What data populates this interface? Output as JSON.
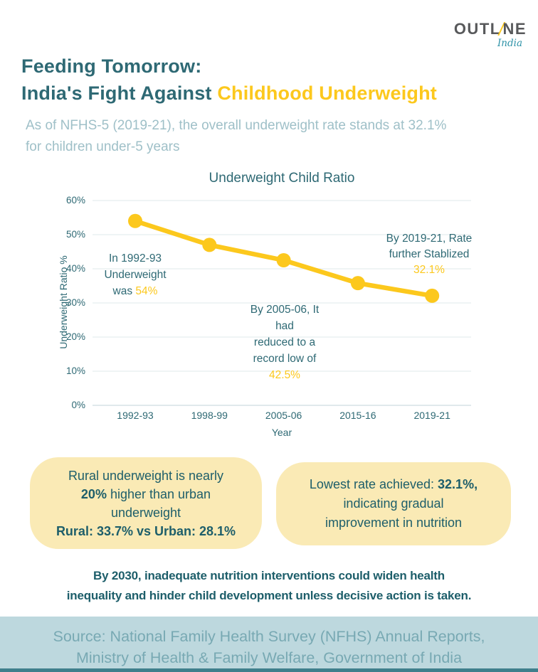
{
  "colors": {
    "teal": "#2e6974",
    "teal_dark": "#1d5e6a",
    "accent_yellow": "#fcc81d",
    "pale_yellow_box": "#faeab5",
    "subtitle_gray_blue": "#9fc0c8",
    "gridline": "#eaf0f2",
    "footer_band": "#bdd8de",
    "footer_text": "#78a9b3",
    "footer_strip": "#3f7f8c",
    "logo_gray": "#58595b",
    "logo_india_teal": "#2f93a8"
  },
  "logo": {
    "word_start": "OUTL",
    "slash": "/",
    "word_end": "NE",
    "tagline": "India"
  },
  "header": {
    "title_line1": "Feeding Tomorrow:",
    "title_line2_part1": "India's Fight Against ",
    "title_line2_part2": "Childhood Underweight",
    "subtitle_line1": "As of NFHS-5 (2019-21), the overall underweight rate stands at 32.1%",
    "subtitle_line2": "for children under-5 years"
  },
  "chart_data": {
    "type": "line",
    "title": "Underweight Child Ratio",
    "xlabel": "Year",
    "ylabel": "Underweight Ratio %",
    "categories": [
      "1992-93",
      "1998-99",
      "2005-06",
      "2015-16",
      "2019-21"
    ],
    "values": [
      54,
      47,
      42.5,
      35.8,
      32.1
    ],
    "ylim": [
      0,
      60
    ],
    "yticks": [
      0,
      10,
      20,
      30,
      40,
      50,
      60
    ],
    "ytick_suffix": "%",
    "grid": true,
    "legend": false,
    "line_color": "#fcc81d",
    "annotations": [
      {
        "line1": "In 1992-93",
        "line2": "Underweight",
        "line3_prefix": "was ",
        "highlight": "54%"
      },
      {
        "line1": "By 2005-06, It",
        "line2": "had",
        "line3": "reduced to a",
        "line4": "record low of",
        "highlight": "42.5%"
      },
      {
        "line1": "By 2019-21, Rate",
        "line2": "further Stablized",
        "highlight": "32.1%"
      }
    ]
  },
  "stat_boxes": {
    "left": {
      "line1": "Rural underweight is nearly",
      "line2_bold": "20%",
      "line2_rest": " higher than urban",
      "line3": "underweight",
      "line4_bold": "Rural: 33.7% vs Urban: 28.1%"
    },
    "right": {
      "line1_prefix": "Lowest rate achieved: ",
      "line1_bold": "32.1%,",
      "line2": "indicating gradual",
      "line3": "improvement in nutrition"
    }
  },
  "warning": {
    "line1": "By 2030, inadequate nutrition interventions could widen health",
    "line2": "inequality and hinder child development unless decisive action is taken."
  },
  "footer": {
    "line1": "Source: National Family Health Survey (NFHS) Annual Reports,",
    "line2": "Ministry of Health &amp; Family Welfare, Government of India"
  }
}
